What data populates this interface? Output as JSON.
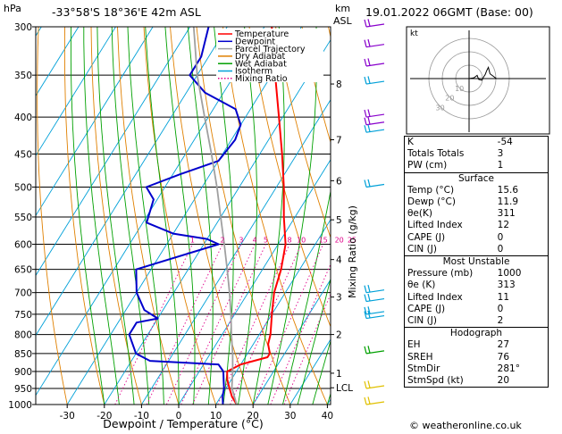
{
  "header": {
    "location": "-33°58'S  18°36'E  42m  ASL",
    "datetime": "19.01.2022  06GMT  (Base: 00)"
  },
  "footer": {
    "credit": "© weatheronline.co.uk"
  },
  "colors": {
    "temperature": "#ff0000",
    "dewpoint": "#0000cc",
    "parcel": "#a0a0a0",
    "dry_adiabat": "#e08000",
    "wet_adiabat": "#00a000",
    "isotherm": "#00a0d8",
    "mixing_ratio": "#e0008a"
  },
  "chart_data": {
    "type": "line",
    "subtype": "skew-t log-p sounding",
    "xlabel": "Dewpoint / Temperature (°C)",
    "ylabel_left": "hPa",
    "ylabel_right_top": "km",
    "ylabel_right_sub": "ASL",
    "ylabel_mixing": "Mixing Ratio (g/kg)",
    "x_ticks": [
      -30,
      -20,
      -10,
      0,
      10,
      20,
      30,
      40
    ],
    "pressure_levels": [
      300,
      350,
      400,
      450,
      500,
      550,
      600,
      650,
      700,
      750,
      800,
      850,
      900,
      950,
      1000
    ],
    "height_labels": [
      {
        "km": "8",
        "p": 360
      },
      {
        "km": "7",
        "p": 430
      },
      {
        "km": "6",
        "p": 490
      },
      {
        "km": "5",
        "p": 555
      },
      {
        "km": "4",
        "p": 630
      },
      {
        "km": "3",
        "p": 710
      },
      {
        "km": "2",
        "p": 800
      },
      {
        "km": "1",
        "p": 905
      },
      {
        "km": "LCL",
        "p": 948
      }
    ],
    "mixing_ratio_labels": [
      "1",
      "2",
      "3",
      "4",
      "5",
      "8",
      "10",
      "15",
      "20",
      "25"
    ],
    "legend": {
      "position": "top-center",
      "entries": [
        {
          "label": "Temperature",
          "color_key": "temperature",
          "style": "solid"
        },
        {
          "label": "Dewpoint",
          "color_key": "dewpoint",
          "style": "solid"
        },
        {
          "label": "Parcel Trajectory",
          "color_key": "parcel",
          "style": "solid"
        },
        {
          "label": "Dry Adiabat",
          "color_key": "dry_adiabat",
          "style": "solid"
        },
        {
          "label": "Wet Adiabat",
          "color_key": "wet_adiabat",
          "style": "solid"
        },
        {
          "label": "Isotherm",
          "color_key": "isotherm",
          "style": "solid"
        },
        {
          "label": "Mixing Ratio",
          "color_key": "mixing_ratio",
          "style": "dotted"
        }
      ]
    },
    "series": [
      {
        "name": "Temperature",
        "points": [
          [
            1000,
            15.6
          ],
          [
            975,
            13
          ],
          [
            950,
            11
          ],
          [
            925,
            9
          ],
          [
            900,
            7.5
          ],
          [
            880,
            10
          ],
          [
            860,
            16
          ],
          [
            850,
            16
          ],
          [
            825,
            14
          ],
          [
            800,
            13
          ],
          [
            750,
            10
          ],
          [
            700,
            7
          ],
          [
            650,
            5
          ],
          [
            600,
            2
          ],
          [
            550,
            -3
          ],
          [
            500,
            -8
          ],
          [
            450,
            -14
          ],
          [
            400,
            -21
          ],
          [
            350,
            -29
          ],
          [
            300,
            -38
          ]
        ]
      },
      {
        "name": "Dewpoint",
        "points": [
          [
            1000,
            11.9
          ],
          [
            975,
            10.5
          ],
          [
            950,
            9.5
          ],
          [
            925,
            8
          ],
          [
            900,
            6.5
          ],
          [
            880,
            4
          ],
          [
            870,
            -15
          ],
          [
            850,
            -20
          ],
          [
            800,
            -25
          ],
          [
            770,
            -25
          ],
          [
            760,
            -20
          ],
          [
            740,
            -25
          ],
          [
            700,
            -30
          ],
          [
            650,
            -34
          ],
          [
            600,
            -16
          ],
          [
            590,
            -20
          ],
          [
            580,
            -30
          ],
          [
            560,
            -39
          ],
          [
            520,
            -41
          ],
          [
            500,
            -45
          ],
          [
            480,
            -38
          ],
          [
            460,
            -30
          ],
          [
            430,
            -29
          ],
          [
            410,
            -30
          ],
          [
            390,
            -34
          ],
          [
            370,
            -45
          ],
          [
            350,
            -52
          ],
          [
            330,
            -52
          ],
          [
            300,
            -55
          ]
        ]
      },
      {
        "name": "Parcel Trajectory",
        "points": [
          [
            1000,
            15.6
          ],
          [
            948,
            11.5
          ],
          [
            900,
            9
          ],
          [
            850,
            6
          ],
          [
            800,
            2.5
          ],
          [
            750,
            -1
          ],
          [
            700,
            -5
          ],
          [
            650,
            -9.5
          ],
          [
            600,
            -14.5
          ],
          [
            550,
            -20
          ],
          [
            500,
            -26
          ],
          [
            450,
            -33
          ],
          [
            400,
            -41
          ],
          [
            350,
            -50
          ],
          [
            300,
            -59
          ]
        ]
      }
    ]
  },
  "indices": [
    {
      "label": "K",
      "value": "-54"
    },
    {
      "label": "Totals Totals",
      "value": "3"
    },
    {
      "label": "PW (cm)",
      "value": "1"
    }
  ],
  "surface": {
    "title": "Surface",
    "rows": [
      {
        "label": "Temp (°C)",
        "value": "15.6"
      },
      {
        "label": "Dewp (°C)",
        "value": "11.9"
      },
      {
        "label": "θe(K)",
        "value": "311"
      },
      {
        "label": "Lifted Index",
        "value": "12"
      },
      {
        "label": "CAPE (J)",
        "value": "0"
      },
      {
        "label": "CIN (J)",
        "value": "0"
      }
    ]
  },
  "most_unstable": {
    "title": "Most Unstable",
    "rows": [
      {
        "label": "Pressure (mb)",
        "value": "1000"
      },
      {
        "label": "θe (K)",
        "value": "313"
      },
      {
        "label": "Lifted Index",
        "value": "11"
      },
      {
        "label": "CAPE (J)",
        "value": "0"
      },
      {
        "label": "CIN (J)",
        "value": "2"
      }
    ]
  },
  "hodograph": {
    "title": "Hodograph",
    "unit_label": "kt",
    "ring_labels": [
      "10",
      "20",
      "30"
    ],
    "rows": [
      {
        "label": "EH",
        "value": "27"
      },
      {
        "label": "SREH",
        "value": "76"
      },
      {
        "label": "StmDir",
        "value": "281°"
      },
      {
        "label": "StmSpd (kt)",
        "value": "20"
      }
    ],
    "trace_kt": [
      [
        0,
        0
      ],
      [
        6,
        1
      ],
      [
        10,
        4
      ],
      [
        12,
        -1
      ],
      [
        16,
        -2
      ],
      [
        18,
        2
      ],
      [
        20,
        5
      ],
      [
        22,
        10
      ],
      [
        24,
        14
      ],
      [
        26,
        6
      ],
      [
        34,
        0
      ],
      [
        40,
        0
      ]
    ]
  }
}
